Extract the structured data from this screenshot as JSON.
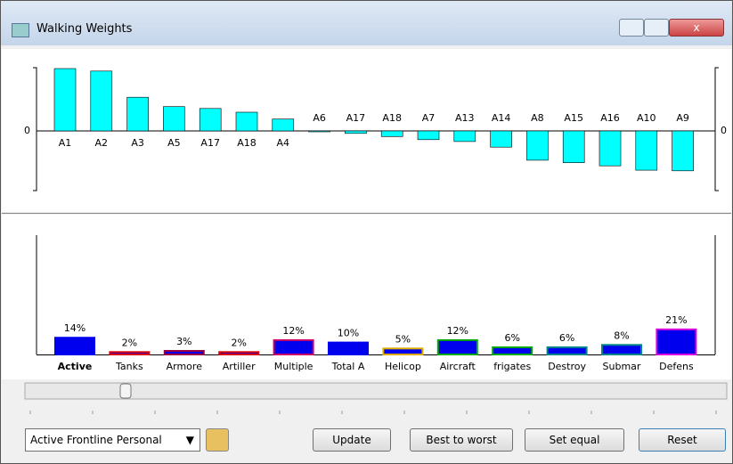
{
  "window": {
    "title": "Walking Weights"
  },
  "weights_chart": {
    "zero_label": "0",
    "ylim": [
      -1,
      1
    ],
    "color": "#00ffff",
    "categories": [
      "A1",
      "A2",
      "A3",
      "A5",
      "A17",
      "A18",
      "A4",
      "A6",
      "A17",
      "A18",
      "A7",
      "A13",
      "A14",
      "A8",
      "A15",
      "A16",
      "A10",
      "A9"
    ],
    "values": [
      1.0,
      0.96,
      0.54,
      0.39,
      0.36,
      0.3,
      0.19,
      -0.01,
      -0.04,
      -0.09,
      -0.14,
      -0.17,
      -0.26,
      -0.47,
      -0.51,
      -0.56,
      -0.63,
      -0.64
    ]
  },
  "criteria_chart": {
    "ylim": [
      0,
      100
    ],
    "fill": "#0000ee",
    "categories": [
      "Active",
      "Tanks",
      "Armore",
      "Artiller",
      "Multiple",
      "Total A",
      "Helicop",
      "Aircraft",
      "frigates",
      "Destroy",
      "Submar",
      "Defens"
    ],
    "values": [
      14,
      2,
      3,
      2,
      12,
      10,
      5,
      12,
      6,
      6,
      8,
      21
    ],
    "value_labels": [
      "14%",
      "2%",
      "3%",
      "2%",
      "12%",
      "10%",
      "5%",
      "12%",
      "6%",
      "6%",
      "8%",
      "21%"
    ],
    "colors": [
      "#0000ee",
      "#dd0000",
      "#990044",
      "#dd0000",
      "#cc0066",
      "#0000ee",
      "#ddaa00",
      "#00aa00",
      "#00aa00",
      "#008888",
      "#008888",
      "#dd00dd"
    ]
  },
  "controls": {
    "dropdown": "Active Frontline Personal",
    "buttons": [
      "Update",
      "Best to worst",
      "Set equal",
      "Reset"
    ]
  }
}
